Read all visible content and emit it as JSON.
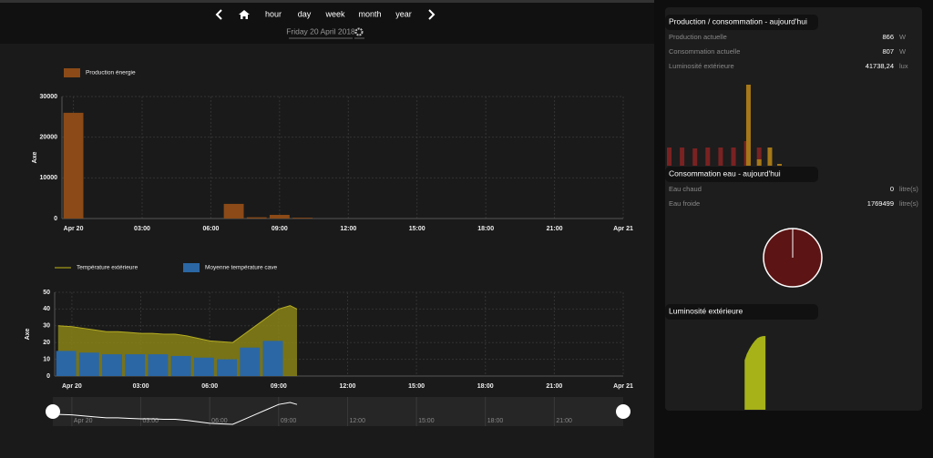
{
  "nav": {
    "items": [
      "hour",
      "day",
      "week",
      "month",
      "year"
    ],
    "date": "Friday 20 April 2018"
  },
  "energy_chart": {
    "type": "bar",
    "y_label": "Axe",
    "series": [
      {
        "name": "Production énergie",
        "color": "#8b4a17",
        "type": "bar",
        "x": [
          0,
          7,
          8,
          9,
          10
        ],
        "values": [
          26000,
          3600,
          300,
          900,
          200
        ]
      }
    ],
    "xlim": [
      -0.5,
      24
    ],
    "xticks": [
      {
        "value": 0,
        "label": "Apr 20"
      },
      {
        "value": 3,
        "label": "03:00"
      },
      {
        "value": 6,
        "label": "06:00"
      },
      {
        "value": 9,
        "label": "09:00"
      },
      {
        "value": 12,
        "label": "12:00"
      },
      {
        "value": 15,
        "label": "15:00"
      },
      {
        "value": 18,
        "label": "18:00"
      },
      {
        "value": 21,
        "label": "21:00"
      },
      {
        "value": 24,
        "label": "Apr 21"
      }
    ],
    "ylim": [
      0,
      30000
    ],
    "yticks": [
      0,
      10000,
      20000,
      30000
    ],
    "grid": true
  },
  "temperature_chart": {
    "type": "combo",
    "y_label": "Axe",
    "series": [
      {
        "name": "Température extérieure",
        "color": "#8a8418",
        "type": "area",
        "x": [
          -0.6,
          0,
          0.5,
          1,
          1.5,
          2,
          2.5,
          3,
          3.5,
          4,
          4.5,
          5,
          5.5,
          6,
          6.5,
          7,
          7.5,
          8,
          8.5,
          9,
          9.5,
          9.8
        ],
        "values": [
          30,
          29.5,
          28.5,
          27.5,
          26.5,
          26.5,
          26,
          25.5,
          25.5,
          25,
          25,
          24,
          22.5,
          21,
          20.5,
          20,
          25,
          30,
          35,
          40,
          42,
          40
        ]
      },
      {
        "name": "Moyenne température cave",
        "color": "#2b67a4",
        "type": "bar",
        "x": [
          -0.25,
          0.75,
          1.75,
          2.75,
          3.75,
          4.75,
          5.75,
          6.75,
          7.75,
          8.75
        ],
        "values": [
          15,
          14,
          13,
          13,
          13,
          12,
          11,
          10,
          17,
          21
        ]
      }
    ],
    "xlim": [
      -0.75,
      24
    ],
    "xticks": [
      {
        "value": 0,
        "label": "Apr 20"
      },
      {
        "value": 3,
        "label": "03:00"
      },
      {
        "value": 6,
        "label": "06:00"
      },
      {
        "value": 9,
        "label": "09:00"
      },
      {
        "value": 12,
        "label": "12:00"
      },
      {
        "value": 15,
        "label": "15:00"
      },
      {
        "value": 18,
        "label": "18:00"
      },
      {
        "value": 21,
        "label": "21:00"
      },
      {
        "value": 24,
        "label": "Apr 21"
      }
    ],
    "ylim": [
      0,
      50
    ],
    "yticks": [
      0,
      10,
      20,
      30,
      40,
      50
    ],
    "grid": true
  },
  "panels": [
    {
      "title": "Production / consommation - aujourd'hui",
      "rows": [
        {
          "label": "Production actuelle",
          "value": "866",
          "unit": "W"
        },
        {
          "label": "Consommation actuelle",
          "value": "807",
          "unit": "W"
        },
        {
          "label": "Luminosité extérieure",
          "value": "41738,24",
          "unit": "lux"
        }
      ],
      "chart": {
        "type": "bar",
        "xlim": [
          0,
          24
        ],
        "series": [
          {
            "color": "#7a2222",
            "x": [
              0,
              1.2,
              2.4,
              3.6,
              4.8,
              6,
              7.2,
              8.4
            ],
            "values": [
              20,
              20,
              19,
              20,
              20,
              20,
              27,
              20
            ]
          },
          {
            "color": "#a67818",
            "x": [
              7.4,
              8.4,
              9.4,
              10.3
            ],
            "values": [
              89,
              7,
              20,
              2
            ]
          }
        ]
      }
    },
    {
      "title": "Consommation eau - aujourd'hui",
      "rows": [
        {
          "label": "Eau chaud",
          "value": "0",
          "unit": "litre(s)"
        },
        {
          "label": "Eau froide",
          "value": "1769499",
          "unit": "litre(s)"
        }
      ],
      "chart": {
        "type": "pie",
        "values": [
          0,
          1769499
        ],
        "colors": [
          "#ffffff",
          "#5c1414"
        ]
      }
    },
    {
      "title": "Luminosité extérieure",
      "chart": {
        "type": "area",
        "color": "#a6b218",
        "xlim": [
          0,
          24
        ],
        "x": [
          7,
          7.2,
          7.45,
          7.7,
          7.95,
          8.2,
          8.45,
          8.7,
          8.95
        ],
        "values": [
          28000,
          31500,
          34500,
          37000,
          39000,
          40500,
          41300,
          41700,
          41738
        ]
      }
    }
  ]
}
